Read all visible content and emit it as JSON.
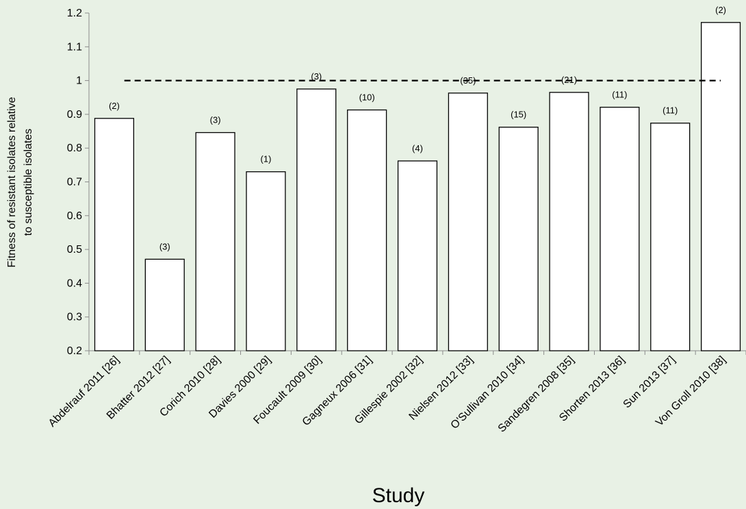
{
  "chart_data": {
    "type": "bar",
    "categories": [
      "Abdelrauf 2011  [26]",
      "Bhatter 2012  [27]",
      "Corich 2010  [28]",
      "Davies 2000  [29]",
      "Foucault 2009 [30]",
      "Gagneux 2006 [31]",
      "Gillespie 2002 [32]",
      "Nielsen 2012 [33]",
      "O'Sullivan 2010 [34]",
      "Sandegren 2008 [35]",
      "Shorten 2013 [36]",
      "Sun 2013 [37]",
      "Von Groll 2010 [38]"
    ],
    "values": [
      0.888,
      0.471,
      0.846,
      0.73,
      0.975,
      0.913,
      0.762,
      0.963,
      0.862,
      0.965,
      0.921,
      0.874,
      1.172
    ],
    "counts": [
      "(2)",
      "(3)",
      "(3)",
      "(1)",
      "(3)",
      "(10)",
      "(4)",
      "(35)",
      "(15)",
      "(21)",
      "(11)",
      "(11)",
      "(2)"
    ],
    "reference_line": 1.0,
    "ylim": [
      0.2,
      1.2
    ],
    "yticks": [
      "0.2",
      "0.3",
      "0.4",
      "0.5",
      "0.6",
      "0.7",
      "0.8",
      "0.9",
      "1",
      "1.1",
      "1.2"
    ],
    "ylabel_lines": [
      "Fitness of resistant isolates relative",
      "to susceptible isolates"
    ],
    "xlabel": "Study",
    "grid": false,
    "colors": {
      "background": "#e8f1e5",
      "bar_fill": "#ffffff",
      "bar_stroke": "#000000",
      "axis": "#8a8a8a"
    }
  }
}
